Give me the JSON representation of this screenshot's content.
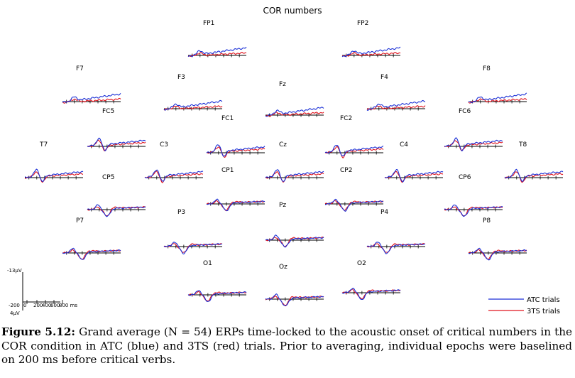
{
  "chart_data": {
    "type": "line",
    "title": "COR numbers",
    "channels": [
      "FP1",
      "FP2",
      "F7",
      "F3",
      "Fz",
      "F4",
      "F8",
      "FC5",
      "FC1",
      "FC2",
      "FC6",
      "T7",
      "C3",
      "Cz",
      "C4",
      "T8",
      "CP5",
      "CP1",
      "CP2",
      "CP6",
      "P7",
      "P3",
      "Pz",
      "P4",
      "P8",
      "O1",
      "Oz",
      "O2"
    ],
    "series": [
      {
        "name": "ATC trials",
        "color": "#1a2fd6"
      },
      {
        "name": "3TS trials",
        "color": "#e0141e"
      }
    ],
    "scale": {
      "y_top_label": "-13μV",
      "y_bottom_label": "4μV",
      "x_tick_labels": [
        "-200",
        "0",
        "200",
        "400",
        "600",
        "800 ms"
      ]
    }
  },
  "caption": {
    "label": "Figure 5.12:",
    "text": " Grand average (N = 54) ERPs time-locked to the acoustic onset of critical numbers in the COR condition in ATC (blue) and 3TS (red) trials. Prior to averaging, individual epochs were baselined on 200 ms before critical verbs."
  }
}
